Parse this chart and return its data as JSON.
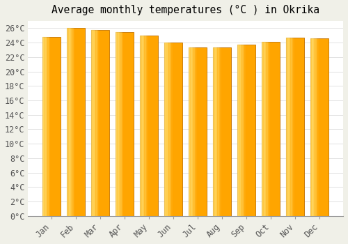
{
  "title": "Average monthly temperatures (°C ) in Okrika",
  "months": [
    "Jan",
    "Feb",
    "Mar",
    "Apr",
    "May",
    "Jun",
    "Jul",
    "Aug",
    "Sep",
    "Oct",
    "Nov",
    "Dec"
  ],
  "values": [
    24.8,
    26.0,
    25.8,
    25.5,
    25.0,
    24.0,
    23.3,
    23.3,
    23.7,
    24.1,
    24.7,
    24.6
  ],
  "bar_color_light": "#FFD966",
  "bar_color_main": "#FFA500",
  "bar_color_dark": "#E07800",
  "bar_edge_color": "#C07000",
  "ylim": [
    0,
    27
  ],
  "ytick_step": 2,
  "background_color": "#F0F0E8",
  "plot_bg_color": "#FFFFFF",
  "grid_color": "#DDDDDD",
  "title_fontsize": 10.5,
  "tick_fontsize": 8.5,
  "font_family": "monospace"
}
